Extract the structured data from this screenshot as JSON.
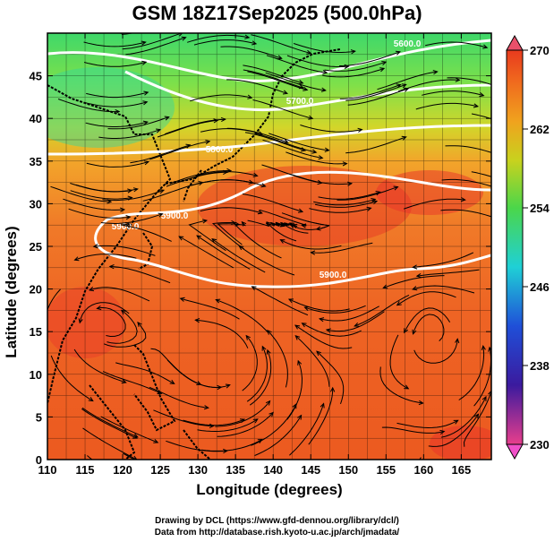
{
  "title": "GSM 18Z17Sep2025 (500.0hPa)",
  "xlabel": "Longitude (degrees)",
  "ylabel": "Latitude  (degrees)",
  "credits": [
    "Drawing by DCL (https://www.gfd-dennou.org/library/dcl/)",
    "Data from http://database.rish.kyoto-u.ac.jp/arch/jmadata/"
  ],
  "map": {
    "lon_range": [
      110,
      169
    ],
    "lat_range": [
      0,
      50
    ],
    "lon_ticks": [
      "110",
      "115",
      "120",
      "125",
      "130",
      "135",
      "140",
      "145",
      "150",
      "155",
      "160",
      "165"
    ],
    "lat_ticks": [
      "0",
      "5",
      "10",
      "15",
      "20",
      "25",
      "30",
      "35",
      "40",
      "45"
    ],
    "contour_labels": [
      "5600.0",
      "5700.0",
      "5800.0",
      "5900.0",
      "5900.0",
      "5900.0"
    ]
  },
  "colorbar": {
    "labels": [
      "270",
      "262",
      "254",
      "246",
      "238",
      "230"
    ],
    "min": 230,
    "max": 270,
    "colors": [
      "#e83e8c",
      "#3b1a9e",
      "#1f4fd8",
      "#1fd0d6",
      "#4bd64a",
      "#c8d21e",
      "#f0a21e",
      "#f06a1e",
      "#e83a1e"
    ]
  }
}
